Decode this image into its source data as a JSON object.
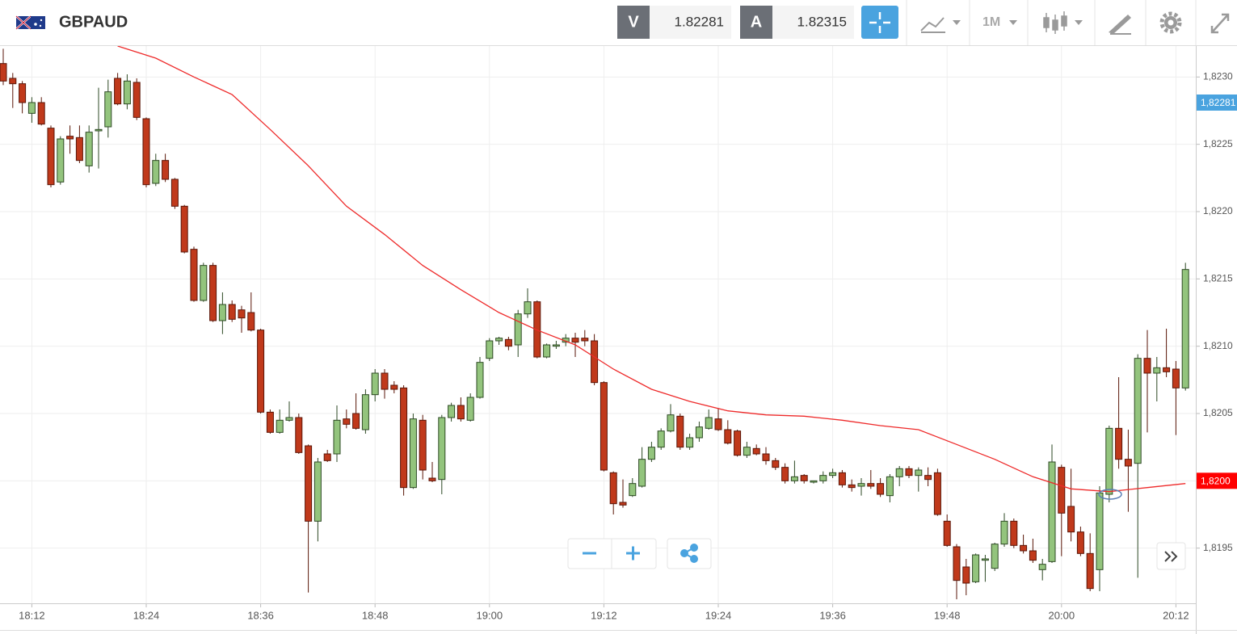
{
  "header": {
    "symbol": "GBPAUD",
    "sell_label": "V",
    "sell_price": "1.82281",
    "buy_label": "A",
    "buy_price": "1.82315",
    "timeframe": "1M"
  },
  "chart_data": {
    "type": "candlestick",
    "x": [
      "18:09",
      "18:10",
      "18:11",
      "18:12",
      "18:13",
      "18:14",
      "18:15",
      "18:16",
      "18:17",
      "18:18",
      "18:19",
      "18:20",
      "18:21",
      "18:22",
      "18:23",
      "18:24",
      "18:25",
      "18:26",
      "18:27",
      "18:28",
      "18:29",
      "18:30",
      "18:31",
      "18:32",
      "18:33",
      "18:34",
      "18:35",
      "18:36",
      "18:37",
      "18:38",
      "18:39",
      "18:40",
      "18:41",
      "18:42",
      "18:43",
      "18:44",
      "18:45",
      "18:46",
      "18:47",
      "18:48",
      "18:49",
      "18:50",
      "18:51",
      "18:52",
      "18:53",
      "18:54",
      "18:55",
      "18:56",
      "18:57",
      "18:58",
      "18:59",
      "19:00",
      "19:01",
      "19:02",
      "19:03",
      "19:04",
      "19:05",
      "19:06",
      "19:07",
      "19:08",
      "19:09",
      "19:10",
      "19:11",
      "19:12",
      "19:13",
      "19:14",
      "19:15",
      "19:16",
      "19:17",
      "19:18",
      "19:19",
      "19:20",
      "19:21",
      "19:22",
      "19:23",
      "19:24",
      "19:25",
      "19:26",
      "19:27",
      "19:28",
      "19:29",
      "19:30",
      "19:31",
      "19:32",
      "19:33",
      "19:34",
      "19:35",
      "19:36",
      "19:37",
      "19:38",
      "19:39",
      "19:40",
      "19:41",
      "19:42",
      "19:43",
      "19:44",
      "19:45",
      "19:46",
      "19:47",
      "19:48",
      "19:49",
      "19:50",
      "19:51",
      "19:52",
      "19:53",
      "19:54",
      "19:55",
      "19:56",
      "19:57",
      "19:58",
      "19:59",
      "20:00",
      "20:01",
      "20:02",
      "20:03",
      "20:04",
      "20:05",
      "20:06",
      "20:07",
      "20:08",
      "20:09",
      "20:10",
      "20:11",
      "20:12",
      "20:13"
    ],
    "open": [
      1.8231,
      1.82299,
      1.82295,
      1.82273,
      1.82281,
      1.82262,
      1.82222,
      1.82256,
      1.82255,
      1.82234,
      1.8226,
      1.82263,
      1.82299,
      1.8228,
      1.82296,
      1.82269,
      1.82221,
      1.82238,
      1.82224,
      1.82204,
      1.82172,
      1.82134,
      1.8216,
      1.82119,
      1.82131,
      1.82127,
      1.82125,
      1.82112,
      1.82051,
      1.82036,
      1.82045,
      1.82047,
      1.82026,
      1.8197,
      1.8202,
      1.8202,
      1.82046,
      1.8205,
      1.82038,
      1.82064,
      1.8208,
      1.82071,
      1.82069,
      1.81995,
      1.82045,
      1.82002,
      1.82001,
      1.82047,
      1.82056,
      1.82045,
      1.82062,
      1.82091,
      1.82104,
      1.82105,
      1.82101,
      1.82124,
      1.82133,
      1.82092,
      1.821,
      1.82103,
      1.82106,
      1.82106,
      1.82104,
      1.82073,
      1.82006,
      1.81984,
      1.81989,
      1.81996,
      1.82016,
      1.82025,
      1.82037,
      1.82048,
      1.82025,
      1.82032,
      1.82039,
      1.82046,
      1.82038,
      1.82037,
      1.82019,
      1.82024,
      1.8202,
      1.82015,
      1.8201,
      1.82,
      1.82004,
      1.81999,
      1.82,
      1.82004,
      1.82006,
      1.81997,
      1.81996,
      1.81998,
      1.81998,
      1.81989,
      1.82003,
      1.82009,
      1.82004,
      1.82004,
      1.82006,
      1.8197,
      1.81951,
      1.81936,
      1.81925,
      1.81941,
      1.81935,
      1.81953,
      1.8197,
      1.81952,
      1.81948,
      1.81934,
      1.8194,
      1.8201,
      1.81981,
      1.81962,
      1.81946,
      1.81934,
      1.8199,
      1.82039,
      1.82016,
      1.82013,
      1.82091,
      1.8208,
      1.82084,
      1.82083,
      1.82069
    ],
    "high": [
      1.82321,
      1.82303,
      1.82297,
      1.82285,
      1.82285,
      1.82264,
      1.82256,
      1.82264,
      1.82264,
      1.82264,
      1.82292,
      1.82298,
      1.82303,
      1.82302,
      1.82299,
      1.8227,
      1.82243,
      1.82243,
      1.82225,
      1.82205,
      1.82174,
      1.82162,
      1.82162,
      1.8214,
      1.82134,
      1.8213,
      1.8214,
      1.82113,
      1.82053,
      1.82053,
      1.82059,
      1.8205,
      1.82027,
      1.82017,
      1.82023,
      1.82056,
      1.82053,
      1.82065,
      1.82068,
      1.82083,
      1.82083,
      1.82074,
      1.82071,
      1.8205,
      1.82049,
      1.82014,
      1.82049,
      1.82058,
      1.82062,
      1.82065,
      1.82092,
      1.82106,
      1.82107,
      1.82107,
      1.82127,
      1.82143,
      1.82134,
      1.82102,
      1.82104,
      1.82109,
      1.8211,
      1.82112,
      1.82109,
      1.82074,
      1.82007,
      1.82001,
      1.82002,
      1.82025,
      1.82029,
      1.82039,
      1.82057,
      1.8205,
      1.82035,
      1.82044,
      1.82053,
      1.82054,
      1.82045,
      1.82038,
      1.82029,
      1.82027,
      1.82025,
      1.82017,
      1.82013,
      1.82015,
      1.82005,
      1.82,
      1.82007,
      1.82009,
      1.82008,
      1.82001,
      1.82002,
      1.82008,
      1.82002,
      1.82005,
      1.82011,
      1.82011,
      1.8201,
      1.8201,
      1.82009,
      1.81975,
      1.81953,
      1.81942,
      1.81946,
      1.81945,
      1.81954,
      1.81976,
      1.81972,
      1.8196,
      1.81957,
      1.81942,
      1.82027,
      1.82012,
      1.82009,
      1.81966,
      1.81961,
      1.81996,
      1.82041,
      1.82077,
      1.82038,
      1.82094,
      1.82112,
      1.82092,
      1.82113,
      1.82089,
      1.82162
    ],
    "low": [
      1.82294,
      1.82277,
      1.82273,
      1.82266,
      1.82264,
      1.82218,
      1.8222,
      1.82243,
      1.82236,
      1.82229,
      1.82232,
      1.82255,
      1.82279,
      1.82276,
      1.82268,
      1.82218,
      1.82219,
      1.82222,
      1.82202,
      1.82169,
      1.82133,
      1.82133,
      1.82118,
      1.82109,
      1.82118,
      1.8211,
      1.82111,
      1.8205,
      1.82035,
      1.82035,
      1.82044,
      1.8202,
      1.81917,
      1.81955,
      1.82014,
      1.82014,
      1.82039,
      1.82038,
      1.82035,
      1.82059,
      1.82061,
      1.82065,
      1.81989,
      1.81994,
      1.82001,
      1.81999,
      1.8199,
      1.82044,
      1.82044,
      1.82044,
      1.82061,
      1.82089,
      1.82101,
      1.82097,
      1.82092,
      1.82121,
      1.82091,
      1.82091,
      1.82098,
      1.821,
      1.82092,
      1.821,
      1.82071,
      1.82007,
      1.81975,
      1.8198,
      1.81988,
      1.81995,
      1.82014,
      1.82023,
      1.82036,
      1.82023,
      1.82023,
      1.82029,
      1.82038,
      1.82037,
      1.82027,
      1.82018,
      1.82017,
      1.82019,
      1.82012,
      1.82008,
      1.81998,
      1.81998,
      1.81998,
      1.81998,
      1.81998,
      1.82002,
      1.81995,
      1.81992,
      1.81989,
      1.81994,
      1.81988,
      1.81984,
      1.81996,
      1.82002,
      1.81992,
      1.81996,
      1.81974,
      1.81951,
      1.81912,
      1.81915,
      1.81924,
      1.81925,
      1.81933,
      1.81951,
      1.8195,
      1.81946,
      1.81939,
      1.81926,
      1.81939,
      1.81944,
      1.81955,
      1.81944,
      1.81918,
      1.81918,
      1.81984,
      1.82009,
      1.81977,
      1.81928,
      1.82036,
      1.82059,
      1.82077,
      1.82034,
      1.82067
    ],
    "close": [
      1.82297,
      1.82295,
      1.82281,
      1.82281,
      1.82265,
      1.8222,
      1.82254,
      1.82254,
      1.82238,
      1.82259,
      1.82261,
      1.82289,
      1.8228,
      1.82297,
      1.8227,
      1.8222,
      1.82238,
      1.82224,
      1.82204,
      1.8217,
      1.82134,
      1.8216,
      1.82119,
      1.82131,
      1.8212,
      1.82121,
      1.82112,
      1.82051,
      1.82036,
      1.82045,
      1.82047,
      1.82021,
      1.8197,
      1.82014,
      1.82015,
      1.82045,
      1.82042,
      1.82039,
      1.82064,
      1.8208,
      1.82068,
      1.82068,
      1.81995,
      1.82046,
      1.82008,
      1.82,
      1.82047,
      1.82056,
      1.82046,
      1.82062,
      1.82088,
      1.82104,
      1.82106,
      1.821,
      1.82124,
      1.82133,
      1.82092,
      1.82101,
      1.82101,
      1.82106,
      1.82103,
      1.82104,
      1.82073,
      1.82008,
      1.81983,
      1.81982,
      1.81998,
      1.82016,
      1.82025,
      1.82037,
      1.82049,
      1.82025,
      1.82032,
      1.8204,
      1.82047,
      1.82038,
      1.82028,
      1.82019,
      1.82025,
      1.8202,
      1.82015,
      1.8201,
      1.82,
      1.82003,
      1.82,
      1.82,
      1.82004,
      1.82006,
      1.81997,
      1.81995,
      1.81998,
      1.81996,
      1.8199,
      1.82003,
      1.82009,
      1.82004,
      1.82008,
      1.82001,
      1.81975,
      1.81952,
      1.81926,
      1.81924,
      1.81945,
      1.81942,
      1.81953,
      1.8197,
      1.81952,
      1.81948,
      1.81941,
      1.81938,
      1.82014,
      1.81976,
      1.81962,
      1.81946,
      1.8192,
      1.81991,
      1.82039,
      1.82016,
      1.82011,
      1.82091,
      1.8208,
      1.82084,
      1.82081,
      1.82069,
      1.82157
    ],
    "up_color": "#93c47d",
    "down_color": "#c0391b",
    "overlay": {
      "color": "#ee2a2a",
      "x": [
        "18:21",
        "18:25",
        "18:29",
        "18:33",
        "18:37",
        "18:41",
        "18:45",
        "18:49",
        "18:53",
        "18:57",
        "19:01",
        "19:05",
        "19:09",
        "19:13",
        "19:17",
        "19:21",
        "19:25",
        "19:29",
        "19:33",
        "19:37",
        "19:41",
        "19:45",
        "19:49",
        "19:53",
        "19:57",
        "20:01",
        "20:05",
        "20:09",
        "20:13"
      ],
      "values": [
        1.82323,
        1.82314,
        1.823,
        1.82287,
        1.82261,
        1.82234,
        1.82204,
        1.82183,
        1.8216,
        1.82142,
        1.82125,
        1.82112,
        1.82101,
        1.82083,
        1.82068,
        1.82059,
        1.82052,
        1.82049,
        1.82048,
        1.82045,
        1.82041,
        1.82038,
        1.82027,
        1.82016,
        1.82003,
        1.81994,
        1.81992,
        1.81995,
        1.81998
      ]
    },
    "ylim": [
      1.81909,
      1.82323
    ],
    "yticks": [
      {
        "value": 1.8195,
        "label": "1,8195"
      },
      {
        "value": 1.82,
        "label": "1,8200"
      },
      {
        "value": 1.8205,
        "label": "1,8205"
      },
      {
        "value": 1.821,
        "label": "1,8210"
      },
      {
        "value": 1.8215,
        "label": "1,8215"
      },
      {
        "value": 1.822,
        "label": "1,8220"
      },
      {
        "value": 1.8225,
        "label": "1,8225"
      },
      {
        "value": 1.823,
        "label": "1,8230"
      }
    ],
    "xticks": [
      "18:12",
      "18:24",
      "18:36",
      "18:48",
      "19:00",
      "19:12",
      "19:24",
      "19:36",
      "19:48",
      "20:00",
      "20:12"
    ],
    "price_markers": [
      {
        "value": 1.82281,
        "label": "1,82281",
        "color": "#4aa3df"
      },
      {
        "value": 1.82,
        "label": "1,8200",
        "color": "#ff0000"
      }
    ],
    "grid": true
  }
}
